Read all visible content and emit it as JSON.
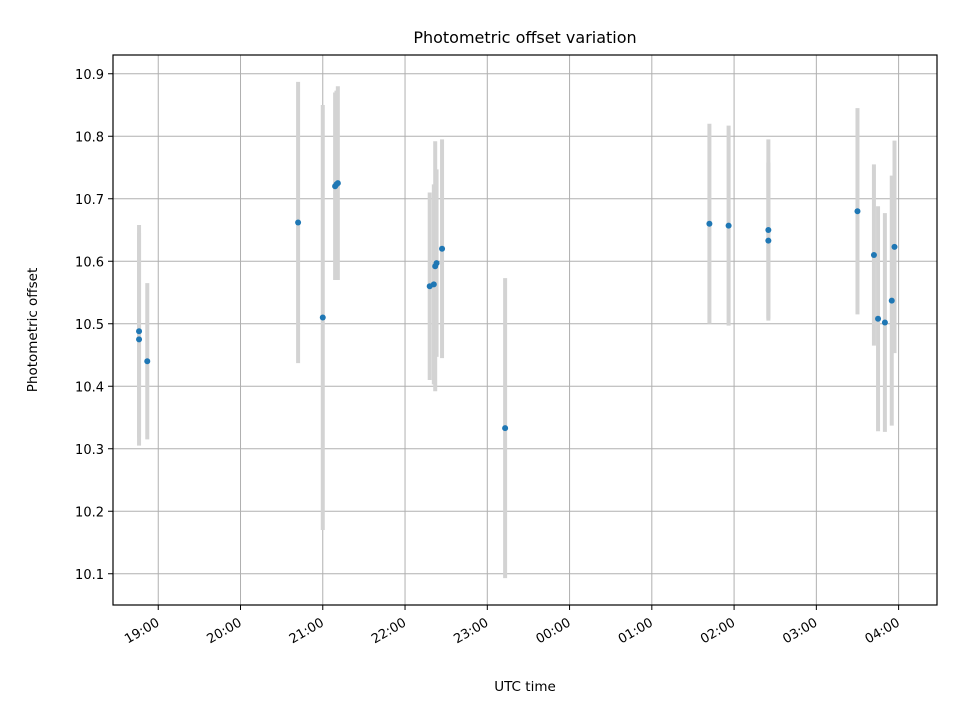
{
  "chart_data": {
    "type": "scatter",
    "title": "Photometric offset variation",
    "xlabel": "UTC time",
    "ylabel": "Photometric offset",
    "x_tick_labels": [
      "19:00",
      "20:00",
      "21:00",
      "22:00",
      "23:00",
      "00:00",
      "01:00",
      "02:00",
      "03:00",
      "04:00"
    ],
    "y_tick_labels": [
      "10.1",
      "10.2",
      "10.3",
      "10.4",
      "10.5",
      "10.6",
      "10.7",
      "10.8",
      "10.9"
    ],
    "xlim": [
      "18:27",
      "04:28"
    ],
    "ylim": [
      10.05,
      10.93
    ],
    "grid": true,
    "marker_color": "#1f77b4",
    "errorbar_color": "#d3d3d3",
    "series": [
      {
        "points": [
          {
            "x": "18:46",
            "y": 10.475,
            "err": 0.17
          },
          {
            "x": "18:46",
            "y": 10.488,
            "err": 0.17
          },
          {
            "x": "18:52",
            "y": 10.44,
            "err": 0.125
          },
          {
            "x": "20:42",
            "y": 10.662,
            "err": 0.225
          },
          {
            "x": "21:00",
            "y": 10.51,
            "err": 0.34
          },
          {
            "x": "21:09",
            "y": 10.72,
            "err": 0.15
          },
          {
            "x": "21:10",
            "y": 10.723,
            "err": 0.15
          },
          {
            "x": "21:11",
            "y": 10.725,
            "err": 0.155
          },
          {
            "x": "22:18",
            "y": 10.56,
            "err": 0.15
          },
          {
            "x": "22:21",
            "y": 10.563,
            "err": 0.16
          },
          {
            "x": "22:22",
            "y": 10.592,
            "err": 0.2
          },
          {
            "x": "22:23",
            "y": 10.597,
            "err": 0.15
          },
          {
            "x": "22:27",
            "y": 10.62,
            "err": 0.175
          },
          {
            "x": "23:13",
            "y": 10.333,
            "err": 0.24
          },
          {
            "x": "01:42",
            "y": 10.66,
            "err": 0.16
          },
          {
            "x": "01:56",
            "y": 10.657,
            "err": 0.16
          },
          {
            "x": "02:25",
            "y": 10.633,
            "err": 0.125
          },
          {
            "x": "02:25",
            "y": 10.65,
            "err": 0.145
          },
          {
            "x": "03:30",
            "y": 10.68,
            "err": 0.165
          },
          {
            "x": "03:42",
            "y": 10.61,
            "err": 0.145
          },
          {
            "x": "03:45",
            "y": 10.508,
            "err": 0.18
          },
          {
            "x": "03:50",
            "y": 10.502,
            "err": 0.175
          },
          {
            "x": "03:55",
            "y": 10.537,
            "err": 0.2
          },
          {
            "x": "03:57",
            "y": 10.623,
            "err": 0.17
          }
        ]
      }
    ]
  }
}
